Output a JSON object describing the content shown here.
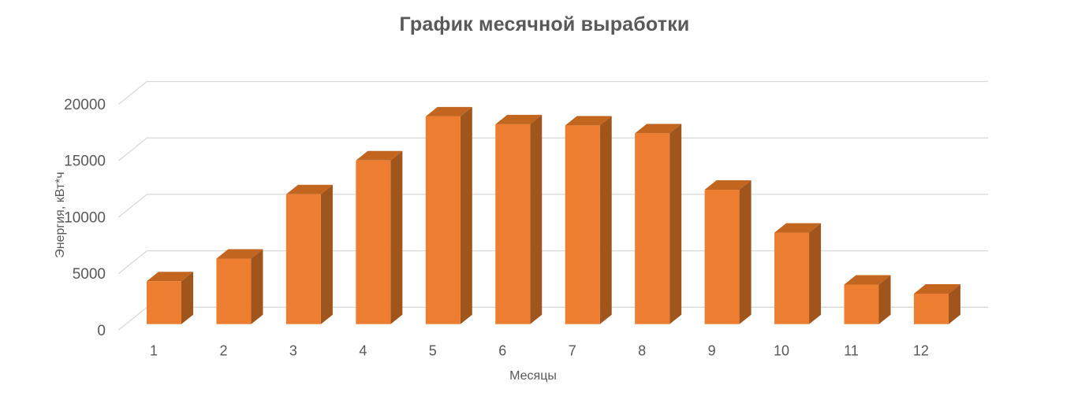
{
  "chart_data": {
    "type": "bar",
    "style": "3d-column",
    "title": "График месячной выработки",
    "xlabel": "Месяцы",
    "ylabel": "Энергия, кВт*ч",
    "categories": [
      "1",
      "2",
      "3",
      "4",
      "5",
      "6",
      "7",
      "8",
      "9",
      "10",
      "11",
      "12"
    ],
    "values": [
      3800,
      5800,
      11500,
      14500,
      18400,
      17700,
      17600,
      16900,
      11900,
      8100,
      3500,
      2700
    ],
    "ylim": [
      0,
      20000
    ],
    "yticks": [
      0,
      5000,
      10000,
      15000,
      20000
    ],
    "ytick_labels": [
      "0",
      "5000",
      "10000",
      "15000",
      "20000"
    ],
    "grid": "horizontal",
    "legend": "none",
    "colors": {
      "bar_front": "#ED7D31",
      "bar_top": "#C2661F",
      "bar_side": "#A0551C",
      "gridline": "#D9D9D9",
      "axis_text": "#595959",
      "title_text": "#595959",
      "background": "#FFFFFF"
    }
  }
}
